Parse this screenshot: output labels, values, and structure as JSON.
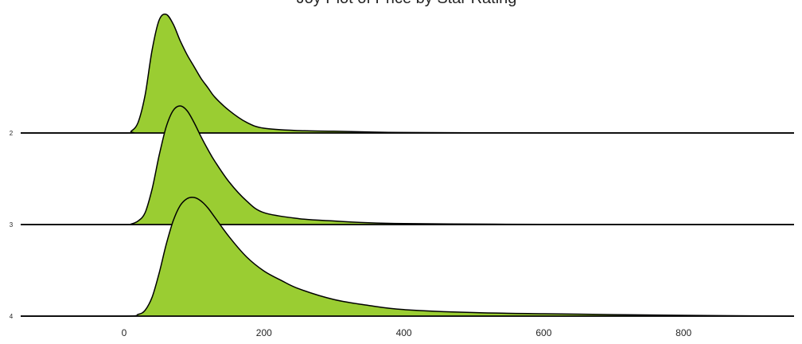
{
  "chart_data": {
    "type": "area",
    "subtype": "ridgeline",
    "title": "Joy Plot of Price by Star Rating",
    "xlabel": "",
    "ylabel": "",
    "xlim": [
      -150,
      960
    ],
    "xticks": [
      0,
      200,
      400,
      600,
      800
    ],
    "grid": false,
    "legend": "none",
    "fill_color": "#9ACD32",
    "line_color": "#000000",
    "series": [
      {
        "name": "2",
        "x": [
          -150,
          0,
          10,
          20,
          30,
          40,
          50,
          60,
          70,
          80,
          90,
          100,
          110,
          120,
          130,
          150,
          175,
          200,
          250,
          300,
          350,
          400,
          500,
          600,
          800,
          960
        ],
        "density": [
          0,
          0,
          0.015,
          0.09,
          0.32,
          0.7,
          0.95,
          1.0,
          0.92,
          0.78,
          0.66,
          0.56,
          0.46,
          0.38,
          0.3,
          0.19,
          0.09,
          0.04,
          0.02,
          0.015,
          0.008,
          0.004,
          0.002,
          0.001,
          0.0005,
          0
        ]
      },
      {
        "name": "3",
        "x": [
          -150,
          0,
          10,
          20,
          30,
          40,
          50,
          60,
          70,
          80,
          90,
          100,
          110,
          120,
          130,
          150,
          175,
          200,
          250,
          300,
          350,
          400,
          500,
          600,
          800,
          960
        ],
        "density": [
          0,
          0,
          0.005,
          0.03,
          0.1,
          0.3,
          0.58,
          0.82,
          0.96,
          1.0,
          0.96,
          0.86,
          0.74,
          0.63,
          0.53,
          0.36,
          0.2,
          0.1,
          0.05,
          0.03,
          0.015,
          0.008,
          0.004,
          0.002,
          0.001,
          0
        ]
      },
      {
        "name": "4",
        "x": [
          -150,
          0,
          20,
          30,
          40,
          50,
          60,
          70,
          80,
          90,
          100,
          110,
          120,
          130,
          150,
          175,
          200,
          225,
          250,
          300,
          350,
          400,
          500,
          600,
          700,
          800,
          960
        ],
        "density": [
          0,
          0,
          0.015,
          0.05,
          0.16,
          0.36,
          0.6,
          0.8,
          0.93,
          0.99,
          1.0,
          0.97,
          0.91,
          0.83,
          0.67,
          0.5,
          0.38,
          0.3,
          0.23,
          0.14,
          0.09,
          0.055,
          0.03,
          0.02,
          0.013,
          0.007,
          0
        ]
      }
    ]
  }
}
